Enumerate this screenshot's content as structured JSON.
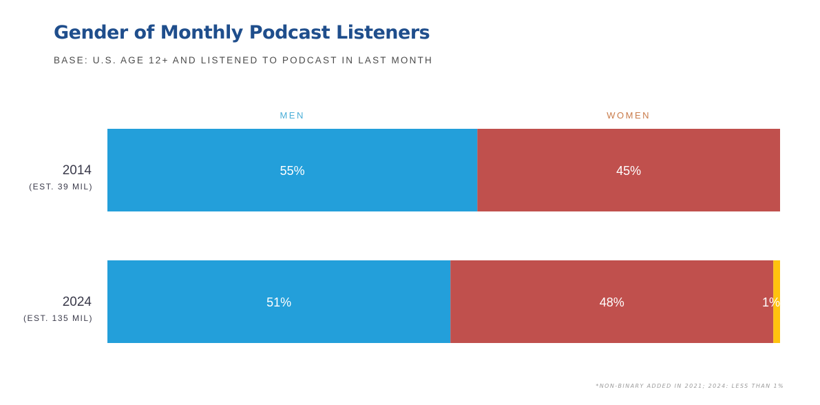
{
  "colors": {
    "title": "#1f4e8c",
    "men": "#239fda",
    "women": "#c0504d",
    "nonbinary": "#ffc20e",
    "men_label": "#4aaed8",
    "women_label": "#c97b4a",
    "row_label": "#3a3a4a"
  },
  "chart_data": {
    "type": "bar",
    "orientation": "horizontal",
    "stacked": true,
    "normalized_to": 100,
    "title": "Gender of Monthly Podcast Listeners",
    "subtitle": "BASE: U.S. AGE 12+ AND LISTENED TO PODCAST IN LAST MONTH",
    "column_labels": [
      {
        "key": "men",
        "text": "MEN"
      },
      {
        "key": "women",
        "text": "WOMEN"
      }
    ],
    "categories": [
      {
        "year": "2014",
        "note": "(EST. 39 MIL)"
      },
      {
        "year": "2024",
        "note": "(EST. 135 MIL)"
      }
    ],
    "series": [
      {
        "name": "Men",
        "key": "men",
        "values": [
          55,
          51
        ],
        "labels": [
          "55%",
          "51%"
        ]
      },
      {
        "name": "Women",
        "key": "women",
        "values": [
          45,
          48
        ],
        "labels": [
          "45%",
          "48%"
        ]
      },
      {
        "name": "Non-binary",
        "key": "nonbinary",
        "values": [
          0,
          1
        ],
        "labels": [
          "",
          "1%"
        ]
      }
    ],
    "footnote": "*NON-BINARY ADDED IN 2021; 2024: LESS THAN 1%"
  }
}
